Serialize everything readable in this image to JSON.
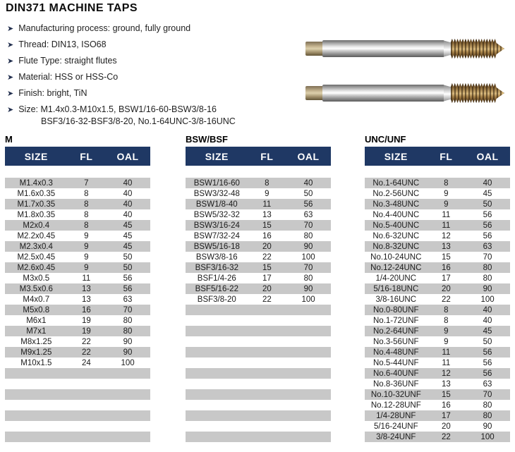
{
  "title": "DIN371 MACHINE TAPS",
  "features": [
    {
      "text": "Manufacturing process: ground, fully ground"
    },
    {
      "text": "Thread: DIN13, ISO68"
    },
    {
      "text": "Flute Type: straight flutes"
    },
    {
      "text": "Material: HSS or HSS-Co"
    },
    {
      "text": "Finish: bright, TiN"
    },
    {
      "text": "Size: M1.4x0.3-M10x1.5, BSW1/16-60-BSW3/8-16",
      "text2": "BSF3/16-32-BSF3/8-20, No.1-64UNC-3/8-16UNC"
    }
  ],
  "columns": [
    "SIZE",
    "FL",
    "OAL"
  ],
  "tables": [
    {
      "label": "M",
      "rows": [
        [
          "M1.4x0.3",
          "7",
          "40"
        ],
        [
          "M1.6x0.35",
          "8",
          "40"
        ],
        [
          "M1.7x0.35",
          "8",
          "40"
        ],
        [
          "M1.8x0.35",
          "8",
          "40"
        ],
        [
          "M2x0.4",
          "8",
          "45"
        ],
        [
          "M2.2x0.45",
          "9",
          "45"
        ],
        [
          "M2.3x0.4",
          "9",
          "45"
        ],
        [
          "M2.5x0.45",
          "9",
          "50"
        ],
        [
          "M2.6x0.45",
          "9",
          "50"
        ],
        [
          "M3x0.5",
          "11",
          "56"
        ],
        [
          "M3.5x0.6",
          "13",
          "56"
        ],
        [
          "M4x0.7",
          "13",
          "63"
        ],
        [
          "M5x0.8",
          "16",
          "70"
        ],
        [
          "M6x1",
          "19",
          "80"
        ],
        [
          "M7x1",
          "19",
          "80"
        ],
        [
          "M8x1.25",
          "22",
          "90"
        ],
        [
          "M9x1.25",
          "22",
          "90"
        ],
        [
          "M10x1.5",
          "24",
          "100"
        ]
      ]
    },
    {
      "label": "BSW/BSF",
      "rows": [
        [
          "BSW1/16-60",
          "8",
          "40"
        ],
        [
          "BSW3/32-48",
          "9",
          "50"
        ],
        [
          "BSW1/8-40",
          "11",
          "56"
        ],
        [
          "BSW5/32-32",
          "13",
          "63"
        ],
        [
          "BSW3/16-24",
          "15",
          "70"
        ],
        [
          "BSW7/32-24",
          "16",
          "80"
        ],
        [
          "BSW5/16-18",
          "20",
          "90"
        ],
        [
          "BSW3/8-16",
          "22",
          "100"
        ],
        [
          "BSF3/16-32",
          "15",
          "70"
        ],
        [
          "BSF1/4-26",
          "17",
          "80"
        ],
        [
          "BSF5/16-22",
          "20",
          "90"
        ],
        [
          "BSF3/8-20",
          "22",
          "100"
        ]
      ]
    },
    {
      "label": "UNC/UNF",
      "rows": [
        [
          "No.1-64UNC",
          "8",
          "40"
        ],
        [
          "No.2-56UNC",
          "9",
          "45"
        ],
        [
          "No.3-48UNC",
          "9",
          "50"
        ],
        [
          "No.4-40UNC",
          "11",
          "56"
        ],
        [
          "No.5-40UNC",
          "11",
          "56"
        ],
        [
          "No.6-32UNC",
          "12",
          "56"
        ],
        [
          "No.8-32UNC",
          "13",
          "63"
        ],
        [
          "No.10-24UNC",
          "15",
          "70"
        ],
        [
          "No.12-24UNC",
          "16",
          "80"
        ],
        [
          "1/4-20UNC",
          "17",
          "80"
        ],
        [
          "5/16-18UNC",
          "20",
          "90"
        ],
        [
          "3/8-16UNC",
          "22",
          "100"
        ],
        [
          "No.0-80UNF",
          "8",
          "40"
        ],
        [
          "No.1-72UNF",
          "8",
          "40"
        ],
        [
          "No.2-64UNF",
          "9",
          "45"
        ],
        [
          "No.3-56UNF",
          "9",
          "50"
        ],
        [
          "No.4-48UNF",
          "11",
          "56"
        ],
        [
          "No.5-44UNF",
          "11",
          "56"
        ],
        [
          "No.6-40UNF",
          "12",
          "56"
        ],
        [
          "No.8-36UNF",
          "13",
          "63"
        ],
        [
          "No.10-32UNF",
          "15",
          "70"
        ],
        [
          "No.12-28UNF",
          "16",
          "80"
        ],
        [
          "1/4-28UNF",
          "17",
          "80"
        ],
        [
          "5/16-24UNF",
          "20",
          "90"
        ],
        [
          "3/8-24UNF",
          "22",
          "100"
        ]
      ]
    }
  ],
  "product_image": {
    "alt": "two straight-flute machine taps",
    "count": 2
  },
  "icons": {
    "bullet": "arrow-bullet-icon",
    "bullet_glyph": "➤"
  },
  "colors": {
    "header_bg": "#1f3864",
    "header_text": "#ffffff",
    "row_alt": "#c8c8c8",
    "bullet": "#23304f"
  }
}
